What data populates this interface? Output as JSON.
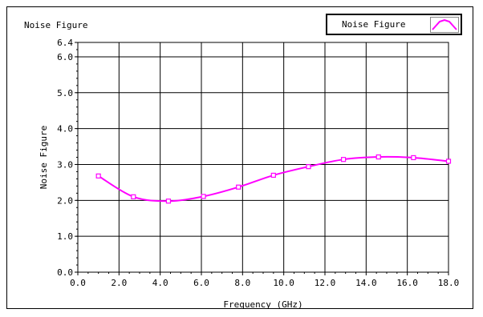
{
  "chart_data": {
    "type": "line",
    "title": "Noise Figure",
    "xlabel": "Frequency (GHz)",
    "ylabel": "Noise Figure",
    "xlim": [
      0,
      18
    ],
    "ylim": [
      0,
      6.4
    ],
    "x_ticks": [
      "0.0",
      "2.0",
      "4.0",
      "6.0",
      "8.0",
      "10.0",
      "12.0",
      "14.0",
      "16.0",
      "18.0"
    ],
    "y_ticks": [
      "0.0",
      "1.0",
      "2.0",
      "3.0",
      "4.0",
      "5.0",
      "6.0",
      "6.4"
    ],
    "grid": true,
    "legend": "top-right",
    "series": [
      {
        "name": "Noise Figure",
        "color": "#ff00ff",
        "x": [
          1.0,
          2.7,
          4.4,
          6.1,
          7.8,
          9.5,
          11.2,
          12.9,
          14.6,
          16.3,
          18.0
        ],
        "y": [
          2.68,
          2.1,
          1.98,
          2.11,
          2.37,
          2.7,
          2.94,
          3.14,
          3.21,
          3.19,
          3.09
        ]
      }
    ]
  }
}
